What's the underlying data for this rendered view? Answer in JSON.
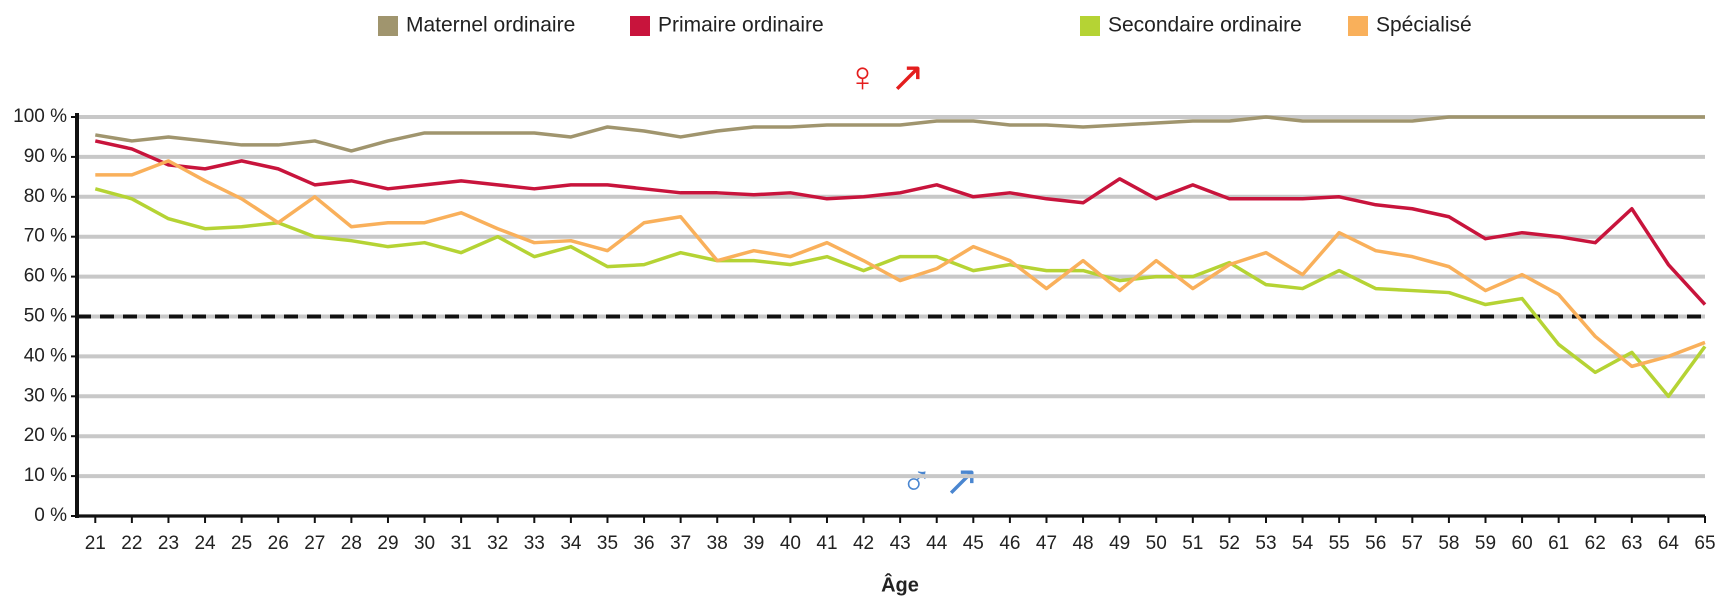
{
  "chart_data": {
    "type": "line",
    "x_label": "Âge",
    "annotations": [
      "♀ ↗",
      "♂ ↗"
    ],
    "x": [
      21,
      22,
      23,
      24,
      25,
      26,
      27,
      28,
      29,
      30,
      31,
      32,
      33,
      34,
      35,
      36,
      37,
      38,
      39,
      40,
      41,
      42,
      43,
      44,
      45,
      46,
      47,
      48,
      49,
      50,
      51,
      52,
      53,
      54,
      55,
      56,
      57,
      58,
      59,
      60,
      61,
      62,
      63,
      64,
      65
    ],
    "xlim": [
      20.5,
      65
    ],
    "ylim": [
      0,
      100
    ],
    "yticks": [
      {
        "value": 0,
        "label": "0 %"
      },
      {
        "value": 10,
        "label": "10 %"
      },
      {
        "value": 20,
        "label": "20 %"
      },
      {
        "value": 30,
        "label": "30 %"
      },
      {
        "value": 40,
        "label": "40 %"
      },
      {
        "value": 50,
        "label": "50 %"
      },
      {
        "value": 60,
        "label": "60 %"
      },
      {
        "value": 70,
        "label": "70 %"
      },
      {
        "value": 80,
        "label": "80 %"
      },
      {
        "value": 90,
        "label": "90 %"
      },
      {
        "value": 100,
        "label": "100 %"
      }
    ],
    "reference_line": 50,
    "grid": true,
    "series": [
      {
        "name": "Maternel ordinaire",
        "color": "#a0956e",
        "values": [
          95.5,
          94,
          95,
          94,
          93,
          93,
          94,
          91.5,
          94,
          96,
          96,
          96,
          96,
          95,
          97.5,
          96.5,
          95,
          96.5,
          97.5,
          97.5,
          98,
          98,
          98,
          99,
          99,
          98,
          98,
          97.5,
          98,
          98.5,
          99,
          99,
          100,
          99,
          99,
          99,
          99,
          100,
          100,
          100,
          100,
          100,
          100,
          100,
          100
        ]
      },
      {
        "name": "Primaire ordinaire",
        "color": "#c8143c",
        "values": [
          94,
          92,
          88,
          87,
          89,
          87,
          83,
          84,
          82,
          83,
          84,
          83,
          82,
          83,
          83,
          82,
          81,
          81,
          80.5,
          81,
          79.5,
          80,
          81,
          83,
          80,
          81,
          79.5,
          78.5,
          84.5,
          79.5,
          83,
          79.5,
          79.5,
          79.5,
          80,
          78,
          77,
          75,
          69.5,
          71,
          70,
          68.5,
          77,
          63,
          53
        ]
      },
      {
        "name": "Secondaire ordinaire",
        "color": "#b5d334",
        "values": [
          82,
          79.5,
          74.5,
          72,
          72.5,
          73.5,
          70,
          69,
          67.5,
          68.5,
          66,
          70,
          65,
          67.5,
          62.5,
          63,
          66,
          64,
          64,
          63,
          65,
          61.5,
          65,
          65,
          61.5,
          63,
          61.5,
          61.5,
          59,
          60,
          60,
          63.5,
          58,
          57,
          61.5,
          57,
          56.5,
          56,
          53,
          54.5,
          43,
          36,
          41,
          30,
          42.5
        ]
      },
      {
        "name": "Spécialisé",
        "color": "#f9b05b",
        "values": [
          85.5,
          85.5,
          89,
          84,
          79.5,
          73.5,
          80,
          72.5,
          73.5,
          73.5,
          76,
          72,
          68.5,
          69,
          66.5,
          73.5,
          75,
          64,
          66.5,
          65,
          68.5,
          64,
          59,
          62,
          67.5,
          64,
          57,
          64,
          56.5,
          64,
          57,
          63,
          66,
          60.5,
          71,
          66.5,
          65,
          62.5,
          56.5,
          60.5,
          55.5,
          45,
          37.5,
          40,
          43.5
        ]
      }
    ]
  }
}
